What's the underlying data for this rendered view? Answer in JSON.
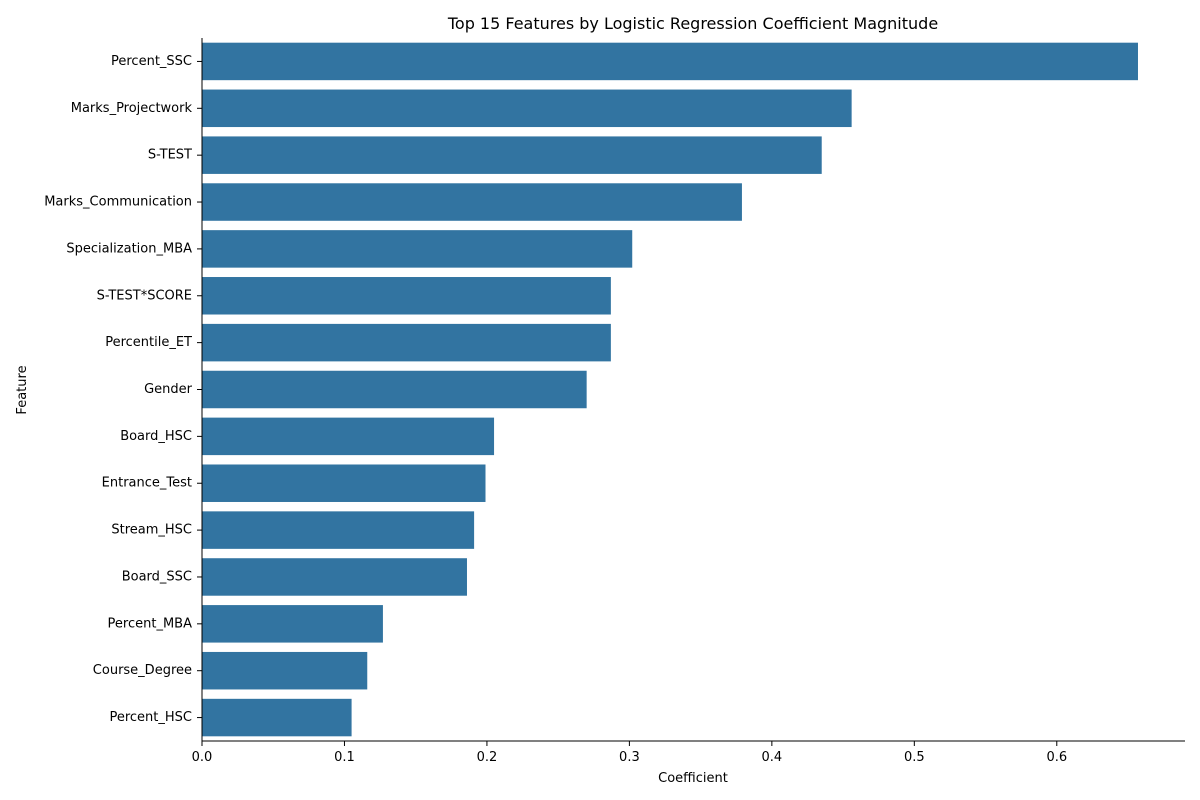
{
  "chart_data": {
    "type": "bar",
    "orientation": "horizontal",
    "title": "Top 15 Features by Logistic Regression Coefficient Magnitude",
    "xlabel": "Coefficient",
    "ylabel": "Feature",
    "xlim": [
      0,
      0.69
    ],
    "xticks": [
      0,
      0.1,
      0.2,
      0.3,
      0.4,
      0.5,
      0.6
    ],
    "xtick_labels": [
      "0.0",
      "0.1",
      "0.2",
      "0.3",
      "0.4",
      "0.5",
      "0.6"
    ],
    "grid": false,
    "bar_color": "#3274a1",
    "categories": [
      "Percent_SSC",
      "Marks_Projectwork",
      "S-TEST",
      "Marks_Communication",
      "Specialization_MBA",
      "S-TEST*SCORE",
      "Percentile_ET",
      "Gender",
      "Board_HSC",
      "Entrance_Test",
      "Stream_HSC",
      "Board_SSC",
      "Percent_MBA",
      "Course_Degree",
      "Percent_HSC"
    ],
    "values": [
      0.657,
      0.456,
      0.435,
      0.379,
      0.302,
      0.287,
      0.287,
      0.27,
      0.205,
      0.199,
      0.191,
      0.186,
      0.127,
      0.116,
      0.105
    ]
  }
}
